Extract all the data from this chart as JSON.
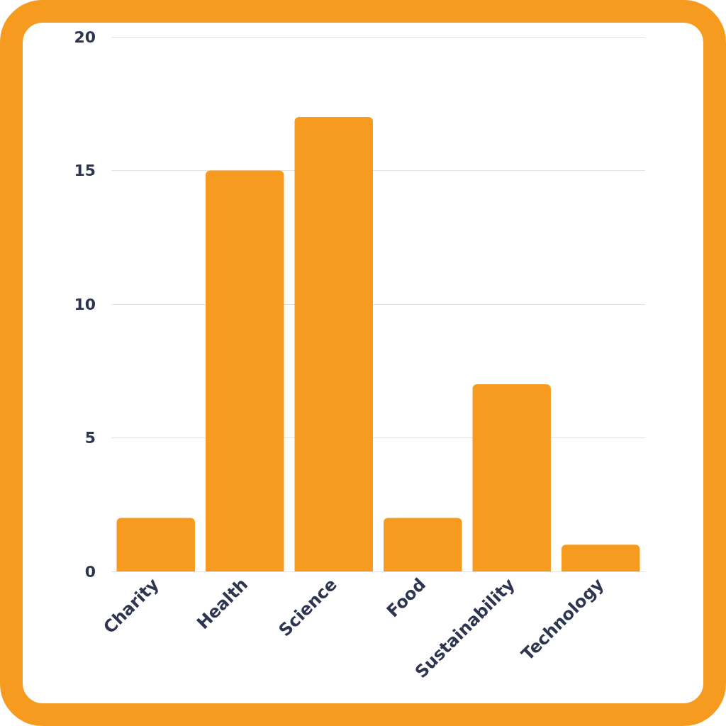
{
  "chart_data": {
    "type": "bar",
    "categories": [
      "Charity",
      "Health",
      "Science",
      "Food",
      "Sustainability",
      "Technology"
    ],
    "values": [
      2,
      15,
      17,
      2,
      7,
      1
    ],
    "color": "#f79b20",
    "ylim": [
      0,
      20
    ],
    "yticks": [
      0,
      5,
      10,
      15,
      20
    ],
    "grid": "y"
  }
}
